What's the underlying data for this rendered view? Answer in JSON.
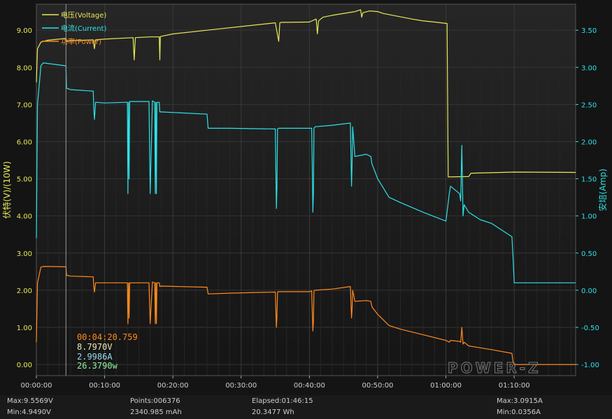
{
  "chart_data": {
    "type": "line",
    "ylabel_left": "伏特(V)/(10W)",
    "ylabel_right": "安培(Amp)",
    "ylim_left": [
      -0.3,
      9.7
    ],
    "ylim_right": [
      -1.15,
      3.85
    ],
    "xlim_seconds": [
      0,
      4740
    ],
    "yticks_left": [
      "9.00",
      "8.00",
      "7.00",
      "6.00",
      "5.00",
      "4.00",
      "3.00",
      "2.00",
      "1.00",
      "0.00"
    ],
    "yticks_left_values": [
      9,
      8,
      7,
      6,
      5,
      4,
      3,
      2,
      1,
      0
    ],
    "yticks_right": [
      "3.50",
      "3.00",
      "2.50",
      "2.00",
      "1.50",
      "1.00",
      "0.50",
      "0.00",
      "-0.50",
      "-1.00"
    ],
    "yticks_right_values": [
      3.5,
      3,
      2.5,
      2,
      1.5,
      1,
      0.5,
      0,
      -0.5,
      -1
    ],
    "xticks": [
      "00:00:00",
      "00:10:00",
      "00:20:00",
      "00:30:00",
      "00:40:00",
      "00:50:00",
      "01:00:00",
      "01:10:00"
    ],
    "xticks_seconds": [
      0,
      600,
      1200,
      1800,
      2400,
      3000,
      3600,
      4200
    ],
    "legend": [
      "电压(Voltage)",
      "电流(Current)",
      "功率(Power)"
    ],
    "grid": true,
    "cursor_x_seconds": 260,
    "series": [
      {
        "name": "电压(Voltage)",
        "color": "#e8e85a",
        "axis": "left",
        "x": [
          0,
          10,
          40,
          100,
          260,
          265,
          300,
          500,
          510,
          520,
          600,
          850,
          860,
          870,
          1000,
          1080,
          1085,
          1090,
          1200,
          1500,
          2100,
          2130,
          2140,
          2150,
          2400,
          2460,
          2470,
          2480,
          2500,
          2520,
          2600,
          2800,
          2850,
          2860,
          2870,
          2930,
          3000,
          3050,
          3300,
          3400,
          3500,
          3610,
          3620,
          3630,
          3800,
          3820,
          4200,
          4740
        ],
        "y": [
          7.6,
          8.5,
          8.68,
          8.73,
          8.78,
          8.7,
          8.72,
          8.74,
          8.5,
          8.74,
          8.76,
          8.8,
          8.2,
          8.8,
          8.82,
          8.82,
          8.2,
          8.83,
          8.9,
          9.0,
          9.2,
          8.7,
          9.2,
          9.21,
          9.22,
          9.3,
          8.9,
          9.25,
          9.3,
          9.35,
          9.4,
          9.5,
          9.55,
          9.35,
          9.47,
          9.52,
          9.5,
          9.45,
          9.3,
          9.25,
          9.22,
          9.18,
          5.05,
          5.05,
          5.06,
          5.15,
          5.18,
          5.17
        ]
      },
      {
        "name": "电流(Current)",
        "color": "#2fe1e6",
        "axis": "right",
        "x": [
          0,
          10,
          40,
          60,
          260,
          265,
          300,
          500,
          505,
          510,
          515,
          520,
          600,
          800,
          805,
          810,
          815,
          820,
          990,
          1000,
          1020,
          1040,
          1045,
          1050,
          1055,
          1060,
          1080,
          1085,
          1100,
          1500,
          1510,
          1700,
          2100,
          2110,
          2115,
          2120,
          2130,
          2400,
          2420,
          2425,
          2430,
          2435,
          2440,
          2450,
          2600,
          2760,
          2770,
          2775,
          2780,
          2800,
          2900,
          2940,
          2950,
          3000,
          3100,
          3200,
          3400,
          3600,
          3630,
          3640,
          3720,
          3730,
          3740,
          3750,
          3760,
          3800,
          3900,
          4000,
          4180,
          4190,
          4200,
          4740
        ],
        "y": [
          0.7,
          2.5,
          3.02,
          3.06,
          3.02,
          2.72,
          2.7,
          2.68,
          2.45,
          2.3,
          2.4,
          2.53,
          2.52,
          2.53,
          1.3,
          2.53,
          1.5,
          2.54,
          2.54,
          1.3,
          2.55,
          2.53,
          1.3,
          2.53,
          1.3,
          2.53,
          2.53,
          2.4,
          2.4,
          2.37,
          2.18,
          2.18,
          2.17,
          1.1,
          1.4,
          2.17,
          2.18,
          2.18,
          2.18,
          1.75,
          1.05,
          1.3,
          2.18,
          2.2,
          2.22,
          2.25,
          1.4,
          1.7,
          2.2,
          1.8,
          1.83,
          1.8,
          1.7,
          1.5,
          1.25,
          1.18,
          1.05,
          0.93,
          1.3,
          1.4,
          1.3,
          1.2,
          1.95,
          1.0,
          1.15,
          1.05,
          0.95,
          0.9,
          0.72,
          0.45,
          0.1,
          0.1
        ]
      },
      {
        "name": "功率(Power)",
        "color": "#ff8a1e",
        "axis": "left",
        "x": [
          0,
          10,
          40,
          60,
          260,
          265,
          300,
          500,
          505,
          510,
          515,
          520,
          600,
          800,
          805,
          810,
          815,
          820,
          990,
          1000,
          1020,
          1040,
          1045,
          1050,
          1055,
          1060,
          1080,
          1085,
          1100,
          1500,
          1510,
          1700,
          2100,
          2110,
          2115,
          2120,
          2130,
          2400,
          2420,
          2425,
          2430,
          2435,
          2440,
          2450,
          2600,
          2760,
          2770,
          2775,
          2780,
          2800,
          2900,
          2940,
          2950,
          3000,
          3100,
          3200,
          3400,
          3600,
          3630,
          3640,
          3720,
          3730,
          3740,
          3750,
          3760,
          3800,
          3900,
          4000,
          4180,
          4190,
          4200,
          4740
        ],
        "y": [
          0.6,
          2.2,
          2.62,
          2.64,
          2.63,
          2.4,
          2.38,
          2.36,
          2.1,
          1.95,
          2.05,
          2.2,
          2.2,
          2.2,
          1.1,
          2.2,
          1.25,
          2.2,
          2.2,
          1.1,
          2.22,
          2.2,
          1.1,
          2.2,
          1.1,
          2.2,
          2.2,
          2.1,
          2.11,
          2.08,
          1.9,
          1.92,
          1.95,
          1.0,
          1.3,
          1.95,
          1.96,
          1.96,
          1.98,
          1.5,
          0.9,
          1.15,
          1.98,
          2.0,
          2.03,
          2.1,
          1.25,
          1.5,
          2.0,
          1.7,
          1.72,
          1.7,
          1.55,
          1.35,
          1.05,
          0.95,
          0.8,
          0.65,
          0.6,
          0.65,
          0.62,
          0.6,
          1.0,
          0.55,
          0.6,
          0.5,
          0.45,
          0.4,
          0.3,
          0.08,
          0.0,
          0.0
        ]
      }
    ]
  },
  "cursor_readout": {
    "time": "00:04:20.759",
    "voltage": "8.7970V",
    "current": "2.9986A",
    "power": "26.3790w",
    "time_color": "#ff8a1e",
    "voltage_color": "#e8e8b0",
    "current_color": "#9bdcf0",
    "power_color": "#8ff0a0"
  },
  "brand": "POWER-Z",
  "footer": {
    "max_v": "Max:9.5569V",
    "min_v": "Min:4.9490V",
    "points": "Points:006376",
    "capacity": "2340.985 mAh",
    "elapsed": "Elapsed:01:46:15",
    "energy": "20.3477 Wh",
    "max_a": "Max:3.0915A",
    "min_a": "Min:0.0356A"
  },
  "colors": {
    "background": "#141414",
    "plot_background": "#1b1b1b",
    "grid": "#343434",
    "left_axis": "#e8e85a",
    "right_axis": "#2fe1e6"
  }
}
